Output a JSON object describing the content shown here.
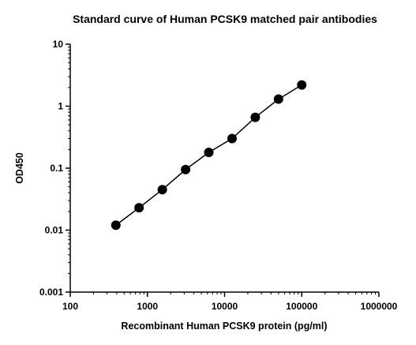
{
  "chart_data": {
    "type": "scatter",
    "title": "Standard curve of Human PCSK9 matched pair antibodies",
    "xlabel": "Recombinant Human PCSK9 protein (pg/ml)",
    "ylabel": "OD450",
    "xscale": "log",
    "yscale": "log",
    "xlim": [
      100,
      1000000
    ],
    "ylim": [
      0.001,
      10
    ],
    "xticks": [
      100,
      1000,
      10000,
      100000,
      1000000
    ],
    "xtick_labels": [
      "100",
      "1000",
      "10000",
      "100000",
      "1000000"
    ],
    "yticks": [
      0.001,
      0.01,
      0.1,
      1,
      10
    ],
    "ytick_labels": [
      "0.001",
      "0.01",
      "0.1",
      "1",
      "10"
    ],
    "grid": false,
    "fit_line": true,
    "series": [
      {
        "x": [
          390,
          780,
          1560,
          3125,
          6250,
          12500,
          25000,
          50000,
          100000
        ],
        "y": [
          0.012,
          0.023,
          0.045,
          0.095,
          0.18,
          0.3,
          0.66,
          1.3,
          2.2
        ]
      }
    ]
  }
}
